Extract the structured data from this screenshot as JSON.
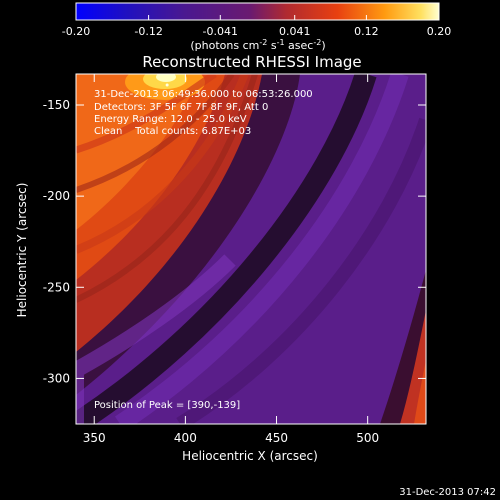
{
  "chart_data": {
    "type": "heatmap",
    "title": "Reconstructed RHESSI Image",
    "xlabel": "Heliocentric X (arcsec)",
    "ylabel": "Heliocentric Y (arcsec)",
    "xlim": [
      340,
      532
    ],
    "ylim": [
      -325,
      -133
    ],
    "x_ticks": [
      350,
      400,
      450,
      500
    ],
    "y_ticks": [
      -150,
      -200,
      -250,
      -300
    ],
    "colorbar": {
      "range": [
        -0.2,
        0.2
      ],
      "tick_values": [
        -0.2,
        -0.12,
        -0.041,
        0.041,
        0.12,
        0.2
      ],
      "tick_labels": [
        "-0.20",
        "-0.12",
        "-0.041",
        "0.041",
        "0.12",
        "0.20"
      ],
      "units_text": "(photons cm",
      "units_exp1": "-2",
      "units_mid": " s",
      "units_exp2": "-1",
      "units_end": " asec",
      "units_exp3": "-2",
      "units_close": ")",
      "colors": [
        "#0000ff",
        "#3000a0",
        "#5a1a8c",
        "#b03030",
        "#e83a10",
        "#ff8000",
        "#ffc020",
        "#ffffc0"
      ]
    },
    "peak": {
      "x": 390,
      "y": -139,
      "value": 0.2
    },
    "annotations": {
      "time": "31-Dec-2013 06:49:36.000 to 06:53:26.000",
      "detectors": "Detectors: 3F 5F 6F 7F 8F 9F, Att 0",
      "energy": "Energy Range: 12.0 - 25.0 keV",
      "clean": "Clean    Total counts: 6.87E+03",
      "peak_text": "Position of Peak = [390,-139]"
    }
  },
  "footer": {
    "timestamp": "31-Dec-2013 07:42"
  }
}
